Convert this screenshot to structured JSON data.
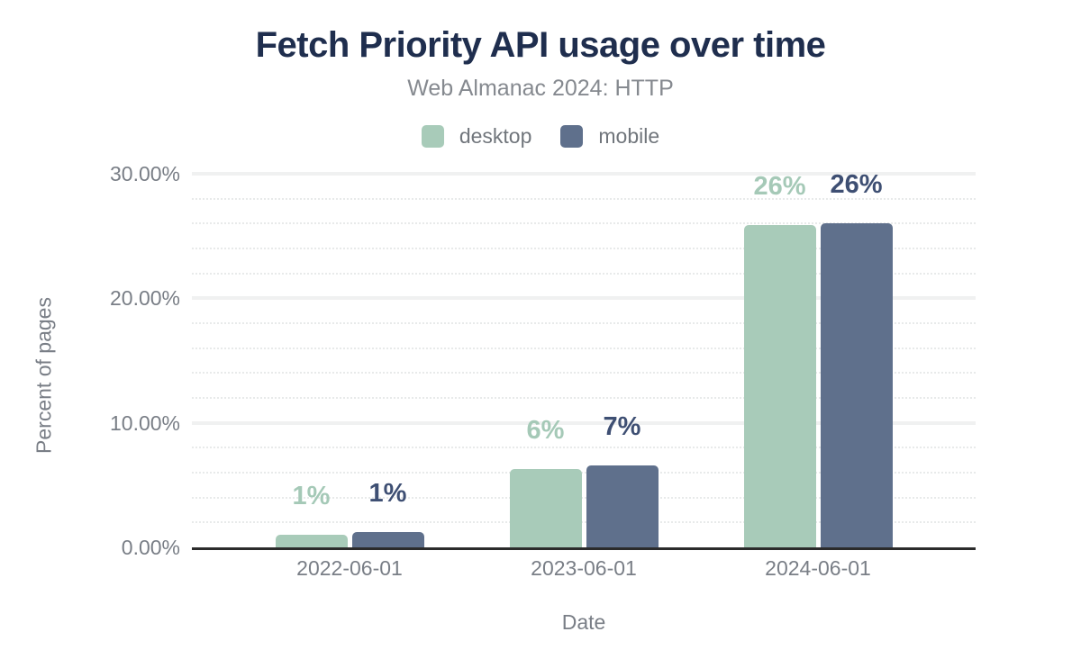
{
  "colors": {
    "title_color": "#1f2e4e",
    "subtitle_color": "#85898f",
    "muted_text": "#71767c",
    "tick_text": "#797e86",
    "axis_line": "#2b2b2b",
    "grid_major": "#f0f1f1",
    "grid_minor": "#e8eaea",
    "desktop": "#a8cbb9",
    "mobile": "#5f708c"
  },
  "chart_data": {
    "type": "bar",
    "title": "Fetch Priority API usage over time",
    "subtitle": "Web Almanac 2024: HTTP",
    "xlabel": "Date",
    "ylabel": "Percent of pages",
    "categories": [
      "2022-06-01",
      "2023-06-01",
      "2024-06-01"
    ],
    "series": [
      {
        "name": "desktop",
        "color": "#a8cbb9",
        "label_color": "#a5c9b7",
        "values": [
          1.0,
          6.3,
          25.9
        ],
        "labels": [
          "1%",
          "6%",
          "26%"
        ]
      },
      {
        "name": "mobile",
        "color": "#5f708c",
        "label_color": "#3e4f73",
        "values": [
          1.2,
          6.6,
          26.0
        ],
        "labels": [
          "1%",
          "7%",
          "26%"
        ]
      }
    ],
    "ylim": [
      0,
      30
    ],
    "y_ticks": [
      {
        "value": 0,
        "label": "0.00%"
      },
      {
        "value": 10,
        "label": "10.00%"
      },
      {
        "value": 20,
        "label": "20.00%"
      },
      {
        "value": 30,
        "label": "30.00%"
      }
    ],
    "grid": {
      "on": true,
      "minor_step": 2,
      "major_step": 10
    },
    "legend_position": "top"
  }
}
